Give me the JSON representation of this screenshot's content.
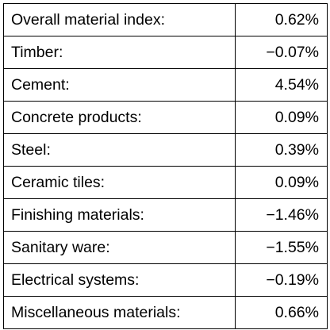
{
  "rows": [
    {
      "label": "Overall material index:",
      "value": "0.62%"
    },
    {
      "label": "Timber:",
      "value": "−0.07%"
    },
    {
      "label": "Cement:",
      "value": "4.54%"
    },
    {
      "label": "Concrete products:",
      "value": "0.09%"
    },
    {
      "label": "Steel:",
      "value": "0.39%"
    },
    {
      "label": "Ceramic tiles:",
      "value": "0.09%"
    },
    {
      "label": "Finishing materials:",
      "value": "−1.46%"
    },
    {
      "label": "Sanitary ware:",
      "value": "−1.55%"
    },
    {
      "label": "Electrical systems:",
      "value": "−0.19%"
    },
    {
      "label": "Miscellaneous materials:",
      "value": "0.66%"
    }
  ]
}
